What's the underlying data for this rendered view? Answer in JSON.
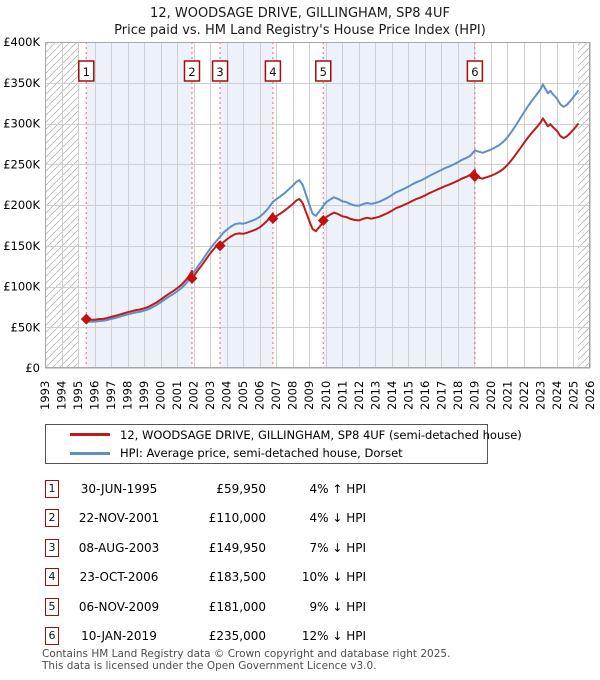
{
  "title": "12, WOODSAGE DRIVE, GILLINGHAM, SP8 4UF",
  "subtitle": "Price paid vs. HM Land Registry's House Price Index (HPI)",
  "legend": {
    "items": [
      {
        "label": "12, WOODSAGE DRIVE, GILLINGHAM, SP8 4UF (semi-detached house)",
        "color": "#c11a1a"
      },
      {
        "label": "HPI: Average price, semi-detached house, Dorset",
        "color": "#5f8fc6"
      }
    ]
  },
  "transactions": [
    {
      "n": "1",
      "date": "30-JUN-1995",
      "price": "£59,950",
      "hpi_delta": "4% ↑ HPI"
    },
    {
      "n": "2",
      "date": "22-NOV-2001",
      "price": "£110,000",
      "hpi_delta": "4% ↓ HPI"
    },
    {
      "n": "3",
      "date": "08-AUG-2003",
      "price": "£149,950",
      "hpi_delta": "7% ↓ HPI"
    },
    {
      "n": "4",
      "date": "23-OCT-2006",
      "price": "£183,500",
      "hpi_delta": "10% ↓ HPI"
    },
    {
      "n": "5",
      "date": "06-NOV-2009",
      "price": "£181,000",
      "hpi_delta": "9% ↓ HPI"
    },
    {
      "n": "6",
      "date": "10-JAN-2019",
      "price": "£235,000",
      "hpi_delta": "12% ↓ HPI"
    }
  ],
  "footer": {
    "line1": "Contains HM Land Registry data © Crown copyright and database right 2025.",
    "line2": "This data is licensed under the Open Government Licence v3.0."
  },
  "chart_data": {
    "type": "line",
    "title": "Price paid vs. HM Land Registry's House Price Index (HPI)",
    "x_range": [
      1993,
      2026
    ],
    "y_range": [
      0,
      400000
    ],
    "x_ticks": [
      1993,
      1994,
      1995,
      1996,
      1997,
      1998,
      1999,
      2000,
      2001,
      2002,
      2003,
      2004,
      2005,
      2006,
      2007,
      2008,
      2009,
      2010,
      2011,
      2012,
      2013,
      2014,
      2015,
      2016,
      2017,
      2018,
      2019,
      2020,
      2021,
      2022,
      2023,
      2024,
      2025,
      2026
    ],
    "y_ticks": [
      {
        "value": 0,
        "label": "£0"
      },
      {
        "value": 50000,
        "label": "£50K"
      },
      {
        "value": 100000,
        "label": "£100K"
      },
      {
        "value": 150000,
        "label": "£150K"
      },
      {
        "value": 200000,
        "label": "£200K"
      },
      {
        "value": 250000,
        "label": "£250K"
      },
      {
        "value": 300000,
        "label": "£300K"
      },
      {
        "value": 350000,
        "label": "£350K"
      },
      {
        "value": 400000,
        "label": "£400K"
      }
    ],
    "colors": {
      "hpi_line": "#5f8fc6",
      "property_line": "#c11a1a",
      "sale_marker": "#c30f0f",
      "sale_dash_line": "#f47c7c",
      "ownership_band": "#edf2fa",
      "gridline": "#cfcfcf",
      "plot_border": "#a8a8a8",
      "hatch_line": "#b8b8b8",
      "badge_border": "#a50b0b"
    },
    "hatch_regions": [
      [
        1993,
        1995.0
      ],
      [
        2025.27,
        2026
      ]
    ],
    "ownership_bands": [
      [
        1995.5,
        2001.9
      ],
      [
        2003.6,
        2006.8
      ],
      [
        2009.85,
        2019.03
      ]
    ],
    "sales": [
      {
        "n": "1",
        "x": 1995.5,
        "price": 59950
      },
      {
        "n": "2",
        "x": 2001.9,
        "price": 110000
      },
      {
        "n": "3",
        "x": 2003.6,
        "price": 149950
      },
      {
        "n": "4",
        "x": 2006.8,
        "price": 183500
      },
      {
        "n": "5",
        "x": 2009.85,
        "price": 181000
      },
      {
        "n": "6",
        "x": 2019.03,
        "price": 235000
      }
    ],
    "series": [
      {
        "name": "HPI: Average price, semi-detached house, Dorset",
        "points": [
          [
            1995.5,
            57600
          ],
          [
            1995.75,
            56800
          ],
          [
            1996,
            56900
          ],
          [
            1996.25,
            57600
          ],
          [
            1996.5,
            57900
          ],
          [
            1996.75,
            58800
          ],
          [
            1997,
            60200
          ],
          [
            1997.25,
            61400
          ],
          [
            1997.5,
            62800
          ],
          [
            1997.75,
            64300
          ],
          [
            1998,
            65800
          ],
          [
            1998.25,
            67000
          ],
          [
            1998.5,
            68200
          ],
          [
            1998.75,
            69000
          ],
          [
            1999,
            70300
          ],
          [
            1999.25,
            72000
          ],
          [
            1999.5,
            74500
          ],
          [
            1999.75,
            77200
          ],
          [
            2000,
            80500
          ],
          [
            2000.25,
            84000
          ],
          [
            2000.5,
            87500
          ],
          [
            2000.75,
            90500
          ],
          [
            2001,
            94000
          ],
          [
            2001.25,
            98000
          ],
          [
            2001.5,
            103000
          ],
          [
            2001.7,
            108000
          ],
          [
            2001.9,
            114600
          ],
          [
            2002.1,
            120000
          ],
          [
            2002.3,
            126000
          ],
          [
            2002.5,
            131500
          ],
          [
            2002.75,
            139000
          ],
          [
            2003,
            146500
          ],
          [
            2003.3,
            154000
          ],
          [
            2003.6,
            161200
          ],
          [
            2003.8,
            166000
          ],
          [
            2004,
            169500
          ],
          [
            2004.25,
            173500
          ],
          [
            2004.5,
            176500
          ],
          [
            2004.75,
            177500
          ],
          [
            2005,
            177000
          ],
          [
            2005.25,
            178500
          ],
          [
            2005.5,
            180500
          ],
          [
            2005.75,
            182500
          ],
          [
            2006,
            185500
          ],
          [
            2006.25,
            190000
          ],
          [
            2006.5,
            195500
          ],
          [
            2006.8,
            203900
          ],
          [
            2007,
            207000
          ],
          [
            2007.25,
            210500
          ],
          [
            2007.5,
            214500
          ],
          [
            2007.75,
            219000
          ],
          [
            2008,
            223500
          ],
          [
            2008.2,
            228000
          ],
          [
            2008.4,
            230500
          ],
          [
            2008.6,
            225000
          ],
          [
            2008.8,
            213000
          ],
          [
            2009,
            201000
          ],
          [
            2009.2,
            189500
          ],
          [
            2009.4,
            186500
          ],
          [
            2009.6,
            192000
          ],
          [
            2009.85,
            198900
          ],
          [
            2010,
            203000
          ],
          [
            2010.25,
            206500
          ],
          [
            2010.5,
            209500
          ],
          [
            2010.75,
            207500
          ],
          [
            2011,
            204500
          ],
          [
            2011.25,
            203500
          ],
          [
            2011.5,
            201000
          ],
          [
            2011.75,
            199500
          ],
          [
            2012,
            199000
          ],
          [
            2012.25,
            201000
          ],
          [
            2012.5,
            202500
          ],
          [
            2012.75,
            201500
          ],
          [
            2013,
            202500
          ],
          [
            2013.25,
            204000
          ],
          [
            2013.5,
            206500
          ],
          [
            2013.75,
            209000
          ],
          [
            2014,
            212000
          ],
          [
            2014.25,
            215500
          ],
          [
            2014.5,
            217500
          ],
          [
            2014.75,
            220000
          ],
          [
            2015,
            222500
          ],
          [
            2015.25,
            225500
          ],
          [
            2015.5,
            228000
          ],
          [
            2015.75,
            230000
          ],
          [
            2016,
            232500
          ],
          [
            2016.25,
            235500
          ],
          [
            2016.5,
            238000
          ],
          [
            2016.75,
            240500
          ],
          [
            2017,
            243000
          ],
          [
            2017.25,
            245500
          ],
          [
            2017.5,
            247500
          ],
          [
            2017.75,
            250000
          ],
          [
            2018,
            252500
          ],
          [
            2018.25,
            255500
          ],
          [
            2018.5,
            257500
          ],
          [
            2018.75,
            260500
          ],
          [
            2019.03,
            267000
          ],
          [
            2019.25,
            265500
          ],
          [
            2019.5,
            264000
          ],
          [
            2019.75,
            266000
          ],
          [
            2020,
            268000
          ],
          [
            2020.25,
            270500
          ],
          [
            2020.5,
            273500
          ],
          [
            2020.75,
            277500
          ],
          [
            2021,
            283000
          ],
          [
            2021.25,
            290000
          ],
          [
            2021.5,
            297500
          ],
          [
            2021.75,
            305500
          ],
          [
            2022,
            313500
          ],
          [
            2022.25,
            321500
          ],
          [
            2022.5,
            328500
          ],
          [
            2022.75,
            335000
          ],
          [
            2023,
            342000
          ],
          [
            2023.15,
            348000
          ],
          [
            2023.3,
            342500
          ],
          [
            2023.45,
            337000
          ],
          [
            2023.6,
            340000
          ],
          [
            2023.75,
            336000
          ],
          [
            2024,
            330500
          ],
          [
            2024.2,
            323500
          ],
          [
            2024.4,
            320500
          ],
          [
            2024.6,
            323000
          ],
          [
            2024.8,
            327500
          ],
          [
            2025,
            332500
          ],
          [
            2025.15,
            336500
          ],
          [
            2025.27,
            340000
          ]
        ]
      },
      {
        "name": "12, WOODSAGE DRIVE, GILLINGHAM, SP8 4UF (semi-detached house)",
        "derived_from_hpi": true,
        "ratio_segments": [
          {
            "until": 2001.9,
            "ratio": 1.0408
          },
          {
            "until": 2003.6,
            "ratio": 0.9599
          },
          {
            "until": 2006.8,
            "ratio": 0.9302
          },
          {
            "until": 2009.85,
            "ratio": 0.9
          },
          {
            "until": 2019.03,
            "ratio": 0.91
          },
          {
            "until": 9999,
            "ratio": 0.8801
          }
        ]
      }
    ]
  }
}
